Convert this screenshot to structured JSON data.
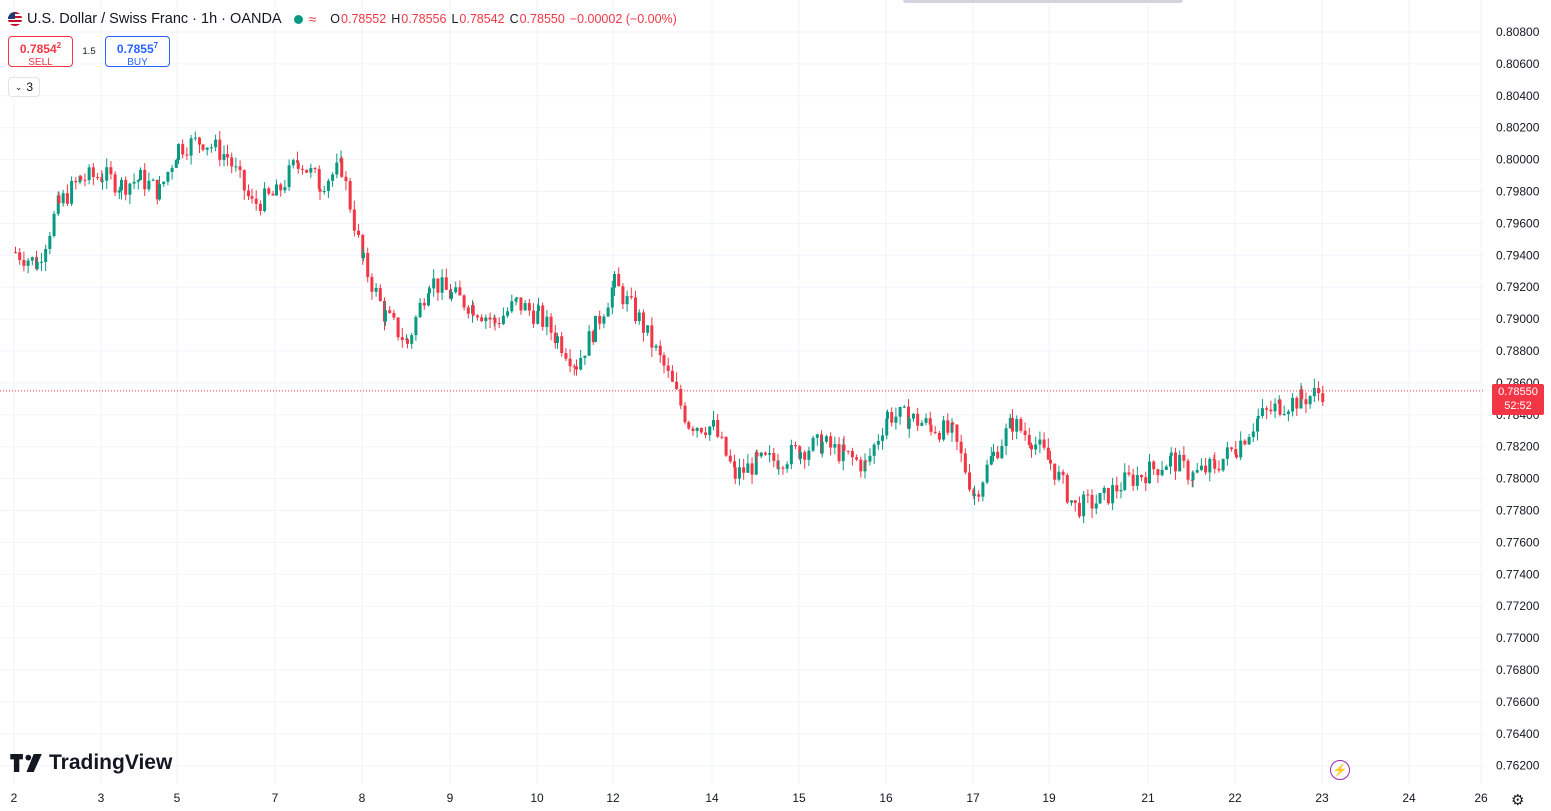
{
  "header": {
    "symbol": "U.S. Dollar / Swiss Franc · 1h · OANDA",
    "status_color": "#089981",
    "approx_icon": "≈",
    "ohlc": [
      {
        "k": "O",
        "v": "0.78552"
      },
      {
        "k": "H",
        "v": "0.78556"
      },
      {
        "k": "L",
        "v": "0.78542"
      },
      {
        "k": "C",
        "v": "0.78550"
      },
      {
        "k": "",
        "v": "−0.00002 (−0.00%)"
      }
    ]
  },
  "trade": {
    "sell_price": "0.7854",
    "sell_sup": "2",
    "sell_label": "SELL",
    "spread": "1.5",
    "buy_price": "0.7855",
    "buy_sup": "7",
    "buy_label": "BUY"
  },
  "indicators_toggle": {
    "icon": "chevron-down-icon",
    "count": "3"
  },
  "brand": {
    "name": "TradingView"
  },
  "last_price": {
    "value": "0.78550",
    "countdown": "52:52",
    "color": "#f23645"
  },
  "colors": {
    "up": "#089981",
    "down": "#f23645",
    "grid": "#f0f3fa",
    "text": "#131722"
  },
  "chart_data": {
    "type": "candlestick",
    "interval": "1h",
    "ylim": [
      0.761,
      0.809
    ],
    "y_ticks": [
      "0.80800",
      "0.80600",
      "0.80400",
      "0.80200",
      "0.80000",
      "0.79800",
      "0.79600",
      "0.79400",
      "0.79200",
      "0.79000",
      "0.78800",
      "0.78600",
      "0.78400",
      "0.78200",
      "0.78000",
      "0.77800",
      "0.77600",
      "0.77400",
      "0.77200",
      "0.77000",
      "0.76800",
      "0.76600",
      "0.76400",
      "0.76200"
    ],
    "x_ticks": [
      "2",
      "3",
      "5",
      "7",
      "8",
      "9",
      "10",
      "12",
      "14",
      "15",
      "16",
      "17",
      "19",
      "21",
      "22",
      "23",
      "24",
      "26"
    ],
    "grid": true,
    "close_path": [
      [
        "2",
        0.7942
      ],
      [
        "2",
        0.7935
      ],
      [
        "2",
        0.7972
      ],
      [
        "2",
        0.7988
      ],
      [
        "3",
        0.799
      ],
      [
        "3",
        0.7984
      ],
      [
        "3",
        0.7988
      ],
      [
        "3",
        0.798
      ],
      [
        "5",
        0.8008
      ],
      [
        "5",
        0.8012
      ],
      [
        "5",
        0.8002
      ],
      [
        "5",
        0.7972
      ],
      [
        "7",
        0.7978
      ],
      [
        "7",
        0.8
      ],
      [
        "7",
        0.7985
      ],
      [
        "7",
        0.7995
      ],
      [
        "8",
        0.7935
      ],
      [
        "8",
        0.7902
      ],
      [
        "8",
        0.7885
      ],
      [
        "8",
        0.7925
      ],
      [
        "9",
        0.7915
      ],
      [
        "9",
        0.7908
      ],
      [
        "9",
        0.7898
      ],
      [
        "9",
        0.791
      ],
      [
        "10",
        0.7902
      ],
      [
        "10",
        0.7888
      ],
      [
        "10",
        0.7872
      ],
      [
        "10",
        0.7895
      ],
      [
        "12",
        0.7922
      ],
      [
        "12",
        0.79
      ],
      [
        "12",
        0.787
      ],
      [
        "12",
        0.7835
      ],
      [
        "14",
        0.7832
      ],
      [
        "14",
        0.7802
      ],
      [
        "14",
        0.781
      ],
      [
        "14",
        0.7812
      ],
      [
        "15",
        0.7818
      ],
      [
        "15",
        0.7822
      ],
      [
        "15",
        0.7815
      ],
      [
        "15",
        0.7808
      ],
      [
        "16",
        0.784
      ],
      [
        "16",
        0.7838
      ],
      [
        "16",
        0.7833
      ],
      [
        "16",
        0.7828
      ],
      [
        "17",
        0.779
      ],
      [
        "17",
        0.7815
      ],
      [
        "17",
        0.7835
      ],
      [
        "17",
        0.7825
      ],
      [
        "19",
        0.781
      ],
      [
        "19",
        0.7782
      ],
      [
        "19",
        0.7786
      ],
      [
        "19",
        0.7798
      ],
      [
        "21",
        0.7805
      ],
      [
        "21",
        0.7812
      ],
      [
        "21",
        0.7802
      ],
      [
        "21",
        0.7808
      ],
      [
        "22",
        0.782
      ],
      [
        "22",
        0.7838
      ],
      [
        "22",
        0.7846
      ],
      [
        "22",
        0.785
      ],
      [
        "23",
        0.7855
      ]
    ]
  }
}
